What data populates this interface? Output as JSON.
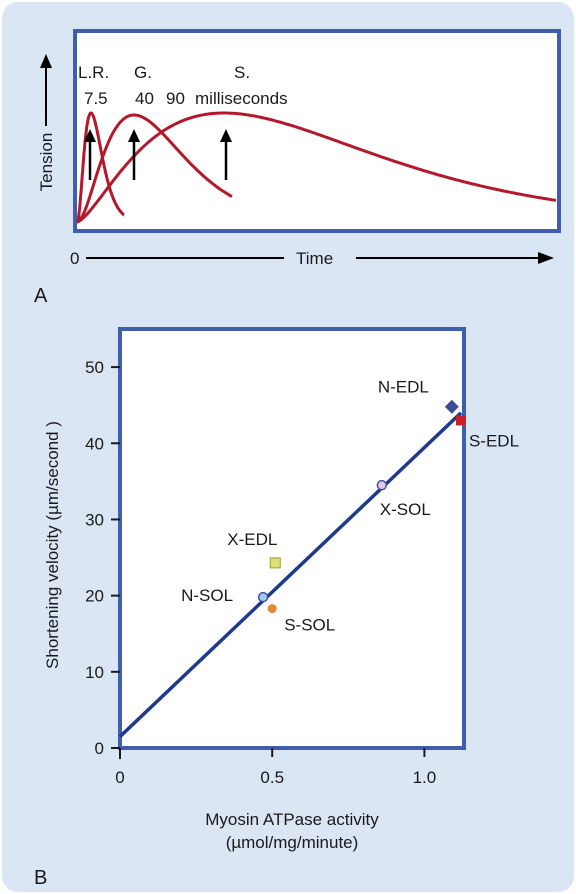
{
  "panels": {
    "a_label": "A",
    "b_label": "B"
  },
  "chart_data": [
    {
      "type": "line",
      "panel": "A",
      "xlabel": "Time",
      "ylabel": "Tension",
      "x_origin_label": "0",
      "unit_label": "milliseconds",
      "series": [
        {
          "name": "L.R.",
          "peak_time": "7.5"
        },
        {
          "name": "G.",
          "peak_time": "40"
        },
        {
          "name": "S.",
          "peak_time": "90"
        }
      ],
      "color": "#b5172b",
      "grid": false
    },
    {
      "type": "scatter",
      "panel": "B",
      "xlabel": "Myosin ATPase activity",
      "xlabel_unit": "(µmol/mg/minute)",
      "ylabel": "Shortening velocity (µm/second )",
      "xlim": [
        0,
        1.13
      ],
      "ylim": [
        0,
        55
      ],
      "xticks": [
        0,
        0.5,
        1.0
      ],
      "xtick_labels": [
        "0",
        "0.5",
        "1.0"
      ],
      "yticks": [
        0,
        10,
        20,
        30,
        40,
        50
      ],
      "ytick_labels": [
        "0",
        "10",
        "20",
        "30",
        "40",
        "50"
      ],
      "grid": false,
      "points": [
        {
          "label": "N-EDL",
          "x": 1.09,
          "y": 44.8,
          "marker": "diamond",
          "color": "#3b4b9a"
        },
        {
          "label": "S-EDL",
          "x": 1.12,
          "y": 43.0,
          "marker": "square",
          "color": "#c8202a"
        },
        {
          "label": "X-SOL",
          "x": 0.86,
          "y": 34.5,
          "marker": "circle",
          "color": "#e6c8e6"
        },
        {
          "label": "X-EDL",
          "x": 0.51,
          "y": 24.3,
          "marker": "square",
          "color": "#dde07a"
        },
        {
          "label": "N-SOL",
          "x": 0.47,
          "y": 19.8,
          "marker": "circle",
          "color": "#a8c8ee"
        },
        {
          "label": "S-SOL",
          "x": 0.5,
          "y": 18.3,
          "marker": "circle",
          "color": "#e08a3a"
        }
      ],
      "fit_line": {
        "x": [
          0,
          1.12
        ],
        "y": [
          1.5,
          44.0
        ],
        "color": "#1f3a8a"
      }
    }
  ]
}
